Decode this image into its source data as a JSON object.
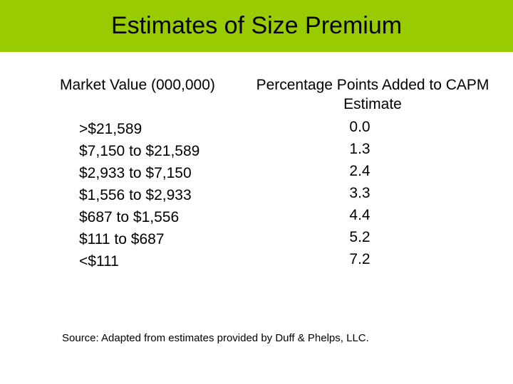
{
  "title": "Estimates of Size Premium",
  "colors": {
    "title_bar": "#99cc00",
    "background": "#ffffff",
    "text": "#000000"
  },
  "table": {
    "header_market_value": "Market Value (000,000)",
    "header_premium": "Percentage Points Added to CAPM Estimate",
    "rows": [
      {
        "market_value": ">$21,589",
        "premium": "0.0"
      },
      {
        "market_value": "$7,150 to $21,589",
        "premium": "1.3"
      },
      {
        "market_value": "$2,933 to $7,150",
        "premium": "2.4"
      },
      {
        "market_value": "$1,556 to $2,933",
        "premium": "3.3"
      },
      {
        "market_value": "$687 to $1,556",
        "premium": "4.4"
      },
      {
        "market_value": "$111 to $687",
        "premium": "5.2"
      },
      {
        "market_value": "<$111",
        "premium": "7.2"
      }
    ]
  },
  "source": "Source: Adapted from estimates provided by Duff & Phelps, LLC."
}
